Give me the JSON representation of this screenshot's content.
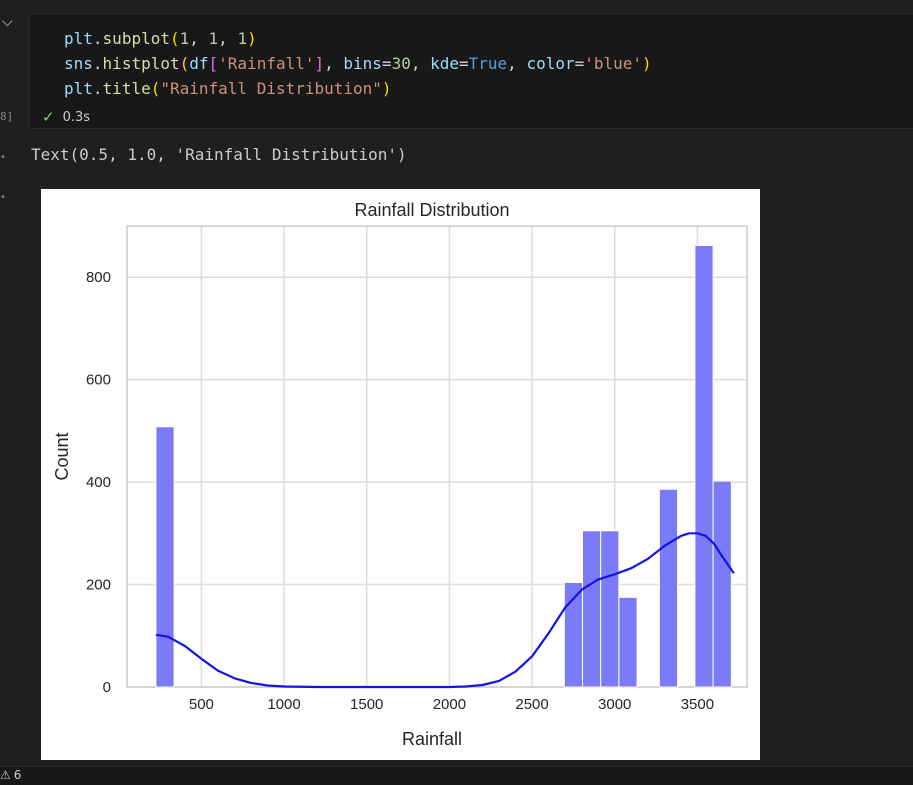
{
  "cell": {
    "execution_count": "8]",
    "code_lines": [
      [
        {
          "t": "plt",
          "c": "var"
        },
        {
          "t": ".",
          "c": "pun"
        },
        {
          "t": "subplot",
          "c": "fn"
        },
        {
          "t": "(",
          "c": "brk1"
        },
        {
          "t": "1",
          "c": "num"
        },
        {
          "t": ", ",
          "c": "pun"
        },
        {
          "t": "1",
          "c": "num"
        },
        {
          "t": ", ",
          "c": "pun"
        },
        {
          "t": "1",
          "c": "num"
        },
        {
          "t": ")",
          "c": "brk1"
        }
      ],
      [
        {
          "t": "sns",
          "c": "var"
        },
        {
          "t": ".",
          "c": "pun"
        },
        {
          "t": "histplot",
          "c": "fn"
        },
        {
          "t": "(",
          "c": "brk1"
        },
        {
          "t": "df",
          "c": "var"
        },
        {
          "t": "[",
          "c": "brk2"
        },
        {
          "t": "'Rainfall'",
          "c": "str"
        },
        {
          "t": "]",
          "c": "brk2"
        },
        {
          "t": ", ",
          "c": "pun"
        },
        {
          "t": "bins",
          "c": "var"
        },
        {
          "t": "=",
          "c": "pun"
        },
        {
          "t": "30",
          "c": "num"
        },
        {
          "t": ", ",
          "c": "pun"
        },
        {
          "t": "kde",
          "c": "var"
        },
        {
          "t": "=",
          "c": "pun"
        },
        {
          "t": "True",
          "c": "kw"
        },
        {
          "t": ", ",
          "c": "pun"
        },
        {
          "t": "color",
          "c": "var"
        },
        {
          "t": "=",
          "c": "pun"
        },
        {
          "t": "'blue'",
          "c": "str"
        },
        {
          "t": ")",
          "c": "brk1"
        }
      ],
      [
        {
          "t": "plt",
          "c": "var"
        },
        {
          "t": ".",
          "c": "pun"
        },
        {
          "t": "title",
          "c": "fn"
        },
        {
          "t": "(",
          "c": "brk1"
        },
        {
          "t": "\"Rainfall Distribution\"",
          "c": "str"
        },
        {
          "t": ")",
          "c": "brk1"
        }
      ]
    ],
    "status_icon": "check-icon",
    "timing": "0.3s"
  },
  "output": {
    "text": "Text(0.5, 1.0, 'Rainfall Distribution')"
  },
  "footer": {
    "warning_icon": "warning-icon",
    "warning_count": "6"
  },
  "colors": {
    "bar_fill": "#7b7bf7",
    "kde_line": "#1414e6",
    "grid": "#dddddd",
    "check": "#89d185"
  },
  "chart_data": {
    "type": "bar",
    "title": "Rainfall Distribution",
    "xlabel": "Rainfall",
    "ylabel": "Count",
    "xlim": [
      50,
      3800
    ],
    "ylim": [
      0,
      900
    ],
    "xticks": [
      500,
      1000,
      1500,
      2000,
      2500,
      3000,
      3500
    ],
    "yticks": [
      0,
      200,
      400,
      600,
      800
    ],
    "grid": true,
    "bars": [
      {
        "x0": 225,
        "x1": 335,
        "count": 508
      },
      {
        "x0": 2695,
        "x1": 2805,
        "count": 204
      },
      {
        "x0": 2805,
        "x1": 2915,
        "count": 305
      },
      {
        "x0": 2915,
        "x1": 3025,
        "count": 305
      },
      {
        "x0": 3025,
        "x1": 3135,
        "count": 175
      },
      {
        "x0": 3270,
        "x1": 3380,
        "count": 386
      },
      {
        "x0": 3485,
        "x1": 3595,
        "count": 862
      },
      {
        "x0": 3595,
        "x1": 3705,
        "count": 402
      }
    ],
    "kde": {
      "x": [
        225,
        300,
        400,
        500,
        600,
        700,
        800,
        900,
        1000,
        1200,
        1500,
        1800,
        2000,
        2100,
        2200,
        2300,
        2400,
        2500,
        2600,
        2700,
        2800,
        2900,
        3000,
        3100,
        3200,
        3300,
        3400,
        3450,
        3500,
        3550,
        3600,
        3650,
        3720
      ],
      "y": [
        102,
        98,
        80,
        55,
        32,
        17,
        8,
        3,
        1,
        0,
        0,
        0,
        0,
        1,
        4,
        12,
        30,
        60,
        105,
        155,
        190,
        210,
        220,
        232,
        250,
        275,
        295,
        300,
        300,
        295,
        280,
        255,
        222
      ]
    }
  }
}
